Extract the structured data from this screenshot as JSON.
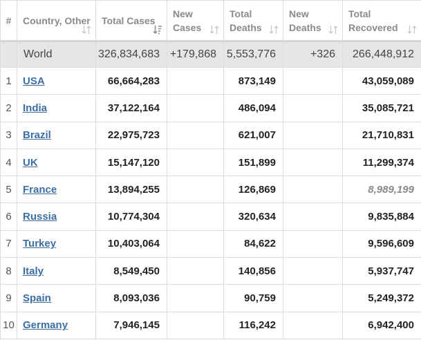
{
  "headers": {
    "rank": "#",
    "country": "Country, Other",
    "total_cases": "Total Cases",
    "new_cases": "New Cases",
    "total_deaths": "Total Deaths",
    "new_deaths": "New Deaths",
    "total_recovered": "Total Recovered"
  },
  "icons": {
    "sort": "sort-arrows-icon",
    "sort_active": "sort-descending-icon"
  },
  "colors": {
    "link": "#3b6ea5",
    "world_row_bg": "#e6e6e6",
    "border": "#dcdcdc"
  },
  "world": {
    "name": "World",
    "total_cases": "326,834,683",
    "new_cases": "+179,868",
    "total_deaths": "5,553,776",
    "new_deaths": "+326",
    "total_recovered": "266,448,912"
  },
  "rows": [
    {
      "rank": "1",
      "country": "USA",
      "total_cases": "66,664,283",
      "new_cases": "",
      "total_deaths": "873,149",
      "new_deaths": "",
      "total_recovered": "43,059,089"
    },
    {
      "rank": "2",
      "country": "India",
      "total_cases": "37,122,164",
      "new_cases": "",
      "total_deaths": "486,094",
      "new_deaths": "",
      "total_recovered": "35,085,721"
    },
    {
      "rank": "3",
      "country": "Brazil",
      "total_cases": "22,975,723",
      "new_cases": "",
      "total_deaths": "621,007",
      "new_deaths": "",
      "total_recovered": "21,710,831"
    },
    {
      "rank": "4",
      "country": "UK",
      "total_cases": "15,147,120",
      "new_cases": "",
      "total_deaths": "151,899",
      "new_deaths": "",
      "total_recovered": "11,299,374"
    },
    {
      "rank": "5",
      "country": "France",
      "total_cases": "13,894,255",
      "new_cases": "",
      "total_deaths": "126,869",
      "new_deaths": "",
      "total_recovered": "8,989,199",
      "recovered_estimated": true
    },
    {
      "rank": "6",
      "country": "Russia",
      "total_cases": "10,774,304",
      "new_cases": "",
      "total_deaths": "320,634",
      "new_deaths": "",
      "total_recovered": "9,835,884"
    },
    {
      "rank": "7",
      "country": "Turkey",
      "total_cases": "10,403,064",
      "new_cases": "",
      "total_deaths": "84,622",
      "new_deaths": "",
      "total_recovered": "9,596,609"
    },
    {
      "rank": "8",
      "country": "Italy",
      "total_cases": "8,549,450",
      "new_cases": "",
      "total_deaths": "140,856",
      "new_deaths": "",
      "total_recovered": "5,937,747"
    },
    {
      "rank": "9",
      "country": "Spain",
      "total_cases": "8,093,036",
      "new_cases": "",
      "total_deaths": "90,759",
      "new_deaths": "",
      "total_recovered": "5,249,372"
    },
    {
      "rank": "10",
      "country": "Germany",
      "total_cases": "7,946,145",
      "new_cases": "",
      "total_deaths": "116,242",
      "new_deaths": "",
      "total_recovered": "6,942,400"
    }
  ]
}
